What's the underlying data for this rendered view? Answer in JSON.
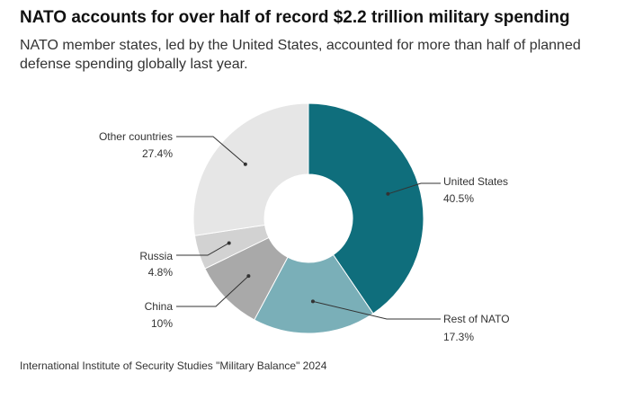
{
  "title": "NATO accounts for over half of record $2.2 trillion military spending",
  "subtitle": "NATO member states, led by the United States, accounted for more than half of planned defense spending globally last year.",
  "source": "International Institute of Security Studies \"Military Balance\" 2024",
  "chart_data": {
    "type": "pie",
    "donut": true,
    "categories": [
      "United States",
      "Rest of NATO",
      "China",
      "Russia",
      "Other countries"
    ],
    "values": [
      40.5,
      17.3,
      10,
      4.8,
      27.4
    ],
    "value_labels": [
      "40.5%",
      "17.3%",
      "10%",
      "4.8%",
      "27.4%"
    ],
    "colors": [
      "#0f6e7c",
      "#7aafb8",
      "#a9a9a9",
      "#d2d2d2",
      "#e6e6e6"
    ],
    "legend": "leader-line labels"
  }
}
